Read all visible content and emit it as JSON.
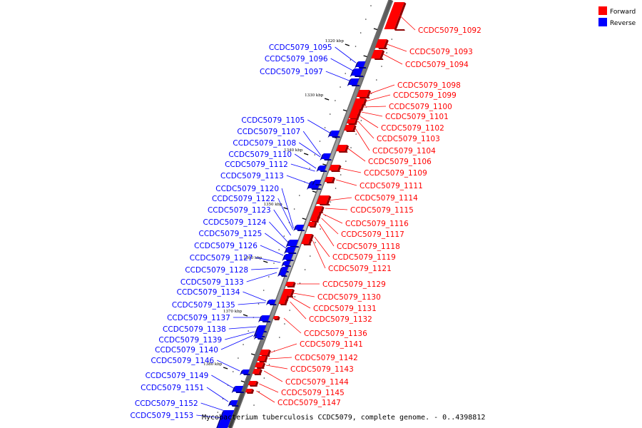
{
  "caption": "Mycobacterium tuberculosis CCDC5079, complete genome. - 0..4398812",
  "legend": [
    {
      "label": "Forward",
      "color": "#ff0000"
    },
    {
      "label": "Reverse",
      "color": "#0000ff"
    }
  ],
  "ticks": [
    "1320 kbp",
    "1330 kbp",
    "1340 kbp",
    "1350 kbp",
    "1360 kbp",
    "1370 kbp",
    "1380 kbp"
  ],
  "forward_genes": [
    "CCDC5079_1092",
    "CCDC5079_1093",
    "CCDC5079_1094",
    "CCDC5079_1098",
    "CCDC5079_1099",
    "CCDC5079_1100",
    "CCDC5079_1101",
    "CCDC5079_1102",
    "CCDC5079_1103",
    "CCDC5079_1104",
    "CCDC5079_1106",
    "CCDC5079_1109",
    "CCDC5079_1111",
    "CCDC5079_1114",
    "CCDC5079_1115",
    "CCDC5079_1116",
    "CCDC5079_1117",
    "CCDC5079_1118",
    "CCDC5079_1119",
    "CCDC5079_1121",
    "CCDC5079_1129",
    "CCDC5079_1130",
    "CCDC5079_1131",
    "CCDC5079_1132",
    "CCDC5079_1136",
    "CCDC5079_1141",
    "CCDC5079_1142",
    "CCDC5079_1143",
    "CCDC5079_1144",
    "CCDC5079_1145",
    "CCDC5079_1147"
  ],
  "reverse_genes": [
    "CCDC5079_1095",
    "CCDC5079_1096",
    "CCDC5079_1097",
    "CCDC5079_1105",
    "CCDC5079_1107",
    "CCDC5079_1108",
    "CCDC5079_1110",
    "CCDC5079_1112",
    "CCDC5079_1113",
    "CCDC5079_1120",
    "CCDC5079_1122",
    "CCDC5079_1123",
    "CCDC5079_1124",
    "CCDC5079_1125",
    "CCDC5079_1126",
    "CCDC5079_1127",
    "CCDC5079_1128",
    "CCDC5079_1133",
    "CCDC5079_1134",
    "CCDC5079_1135",
    "CCDC5079_1137",
    "CCDC5079_1138",
    "CCDC5079_1139",
    "CCDC5079_1140",
    "CCDC5079_1146",
    "CCDC5079_1149",
    "CCDC5079_1151",
    "CCDC5079_1152",
    "CCDC5079_1153"
  ]
}
